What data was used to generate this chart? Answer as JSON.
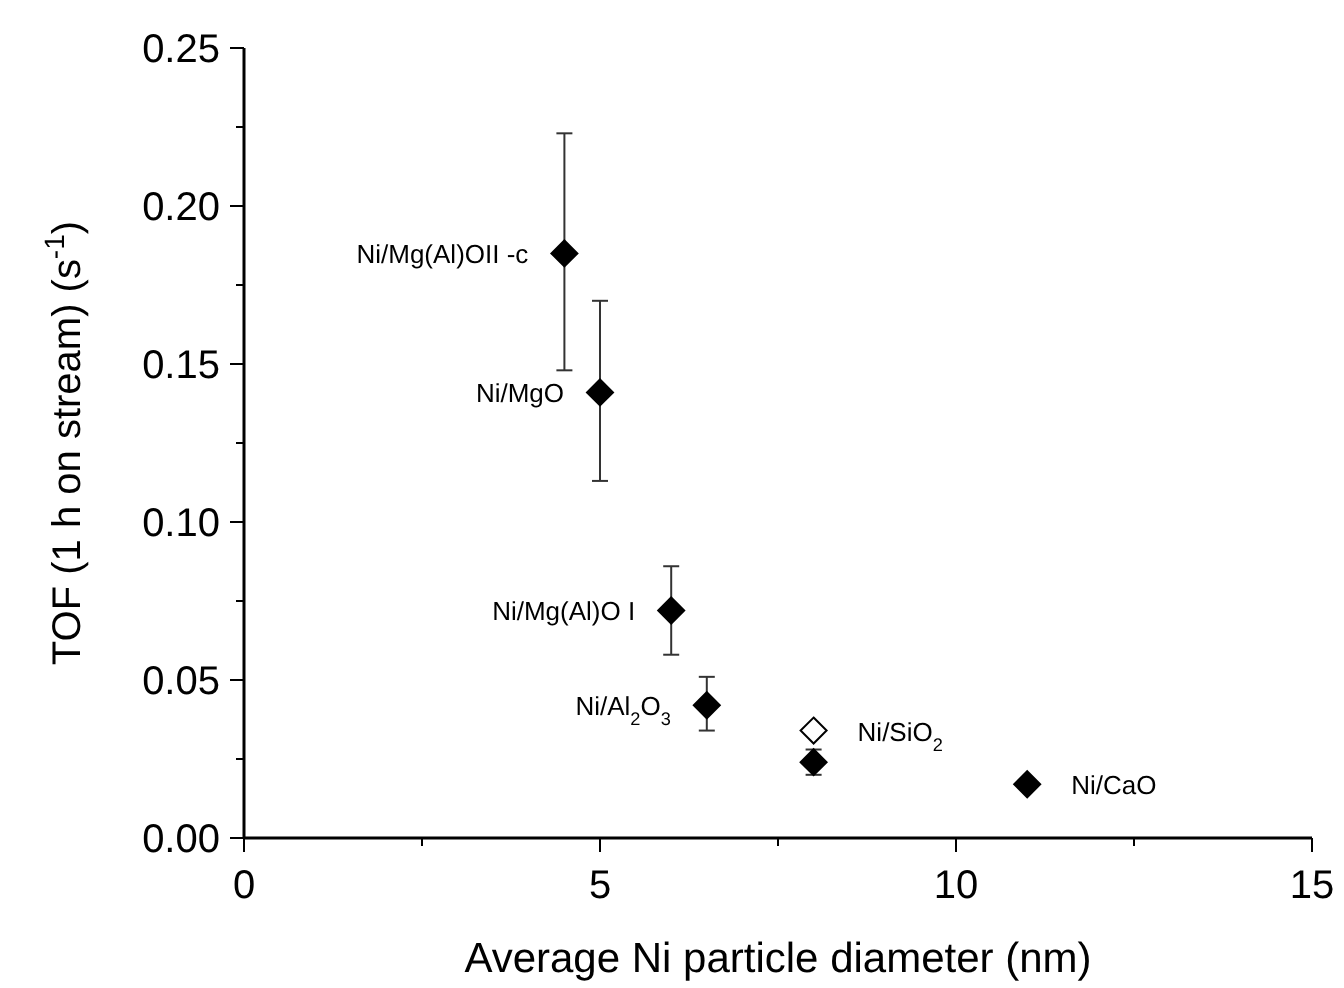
{
  "chart_data": {
    "type": "scatter",
    "xlabel": "Average Ni particle diameter (nm)",
    "ylabel": "TOF (1 h on stream) (s$^{-1}$)",
    "xlim": [
      0,
      15
    ],
    "xticks": [
      0,
      {
        "value": 2.5,
        "label": null
      },
      5,
      {
        "value": 7.5,
        "label": null
      },
      10,
      {
        "value": 12.5,
        "label": null
      },
      15
    ],
    "ylim": [
      0,
      0.25
    ],
    "yticks": [
      {
        "value": 0,
        "label": "0.00"
      },
      {
        "value": 0.05,
        "label": "0.05"
      },
      {
        "value": 0.1,
        "label": "0.10"
      },
      {
        "value": 0.15,
        "label": "0.15"
      },
      {
        "value": 0.2,
        "label": "0.20"
      },
      {
        "value": 0.25,
        "label": "0.25"
      }
    ],
    "marker": "diamond",
    "grid": false,
    "series": [
      {
        "color": "#000000",
        "x": [
          4.5,
          5.0,
          6.0,
          6.5,
          8.0,
          11.0
        ],
        "values": [
          0.185,
          0.141,
          0.072,
          0.042,
          0.024,
          0.017
        ],
        "errors": [
          [
            0.148,
            0.223
          ],
          [
            0.113,
            0.17
          ],
          [
            0.058,
            0.086
          ],
          [
            0.034,
            0.051
          ],
          [
            0.02,
            0.028
          ],
          null
        ]
      },
      {
        "color": "#ffffff",
        "x": [
          8.0
        ],
        "values": [
          0.034
        ]
      }
    ],
    "annotations": [
      {
        "text": "Ni/Mg(Al)OII -c",
        "x": 4.5,
        "y": 0.185
      },
      {
        "text": "Ni/MgO",
        "x": 5.0,
        "y": 0.141
      },
      {
        "text": "Ni/Mg(Al)O I",
        "x": 6.0,
        "y": 0.072
      },
      {
        "text": "Ni/Al$_{2}$O$_{3}$",
        "x": 6.5,
        "y": 0.042
      },
      {
        "text": "Ni/SiO$_{2}$",
        "x": 8.0,
        "y": 0.034
      },
      {
        "text": "Ni/CaO",
        "x": 11.0,
        "y": 0.017
      }
    ]
  }
}
